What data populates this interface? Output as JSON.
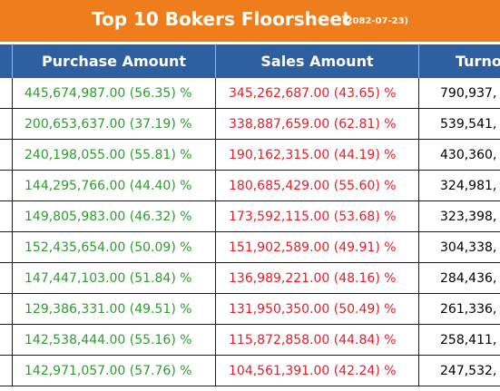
{
  "header": {
    "title": "Top 10 Bokers Floorsheet",
    "date": "(2082-07-23)"
  },
  "colors": {
    "title_bg": "#f07d1c",
    "header_bg": "#2e5fa1",
    "purchase": "#2aa02a",
    "sales": "#e0202a",
    "turnover": "#000000"
  },
  "columns": {
    "purchase": "Purchase Amount",
    "sales": "Sales Amount",
    "turnover": "Turno"
  },
  "rows": [
    {
      "purchase": "445,674,987.00 (56.35) %",
      "sales": "345,262,687.00 (43.65) %",
      "turnover": "790,937,"
    },
    {
      "purchase": "200,653,637.00 (37.19) %",
      "sales": "338,887,659.00 (62.81) %",
      "turnover": "539,541,"
    },
    {
      "purchase": "240,198,055.00 (55.81) %",
      "sales": "190,162,315.00 (44.19) %",
      "turnover": "430,360,"
    },
    {
      "purchase": "144,295,766.00 (44.40) %",
      "sales": "180,685,429.00 (55.60) %",
      "turnover": "324,981,"
    },
    {
      "purchase": "149,805,983.00 (46.32) %",
      "sales": "173,592,115.00 (53.68) %",
      "turnover": "323,398,"
    },
    {
      "purchase": "152,435,654.00 (50.09) %",
      "sales": "151,902,589.00 (49.91) %",
      "turnover": "304,338,"
    },
    {
      "purchase": "147,447,103.00 (51.84) %",
      "sales": "136,989,221.00 (48.16) %",
      "turnover": "284,436,"
    },
    {
      "purchase": "129,386,331.00 (49.51) %",
      "sales": "131,950,350.00 (50.49) %",
      "turnover": "261,336,"
    },
    {
      "purchase": "142,538,444.00 (55.16) %",
      "sales": "115,872,858.00 (44.84) %",
      "turnover": "258,411,"
    },
    {
      "purchase": "142,971,057.00 (57.76) %",
      "sales": "104,561,391.00 (42.24) %",
      "turnover": "247,532,"
    }
  ]
}
